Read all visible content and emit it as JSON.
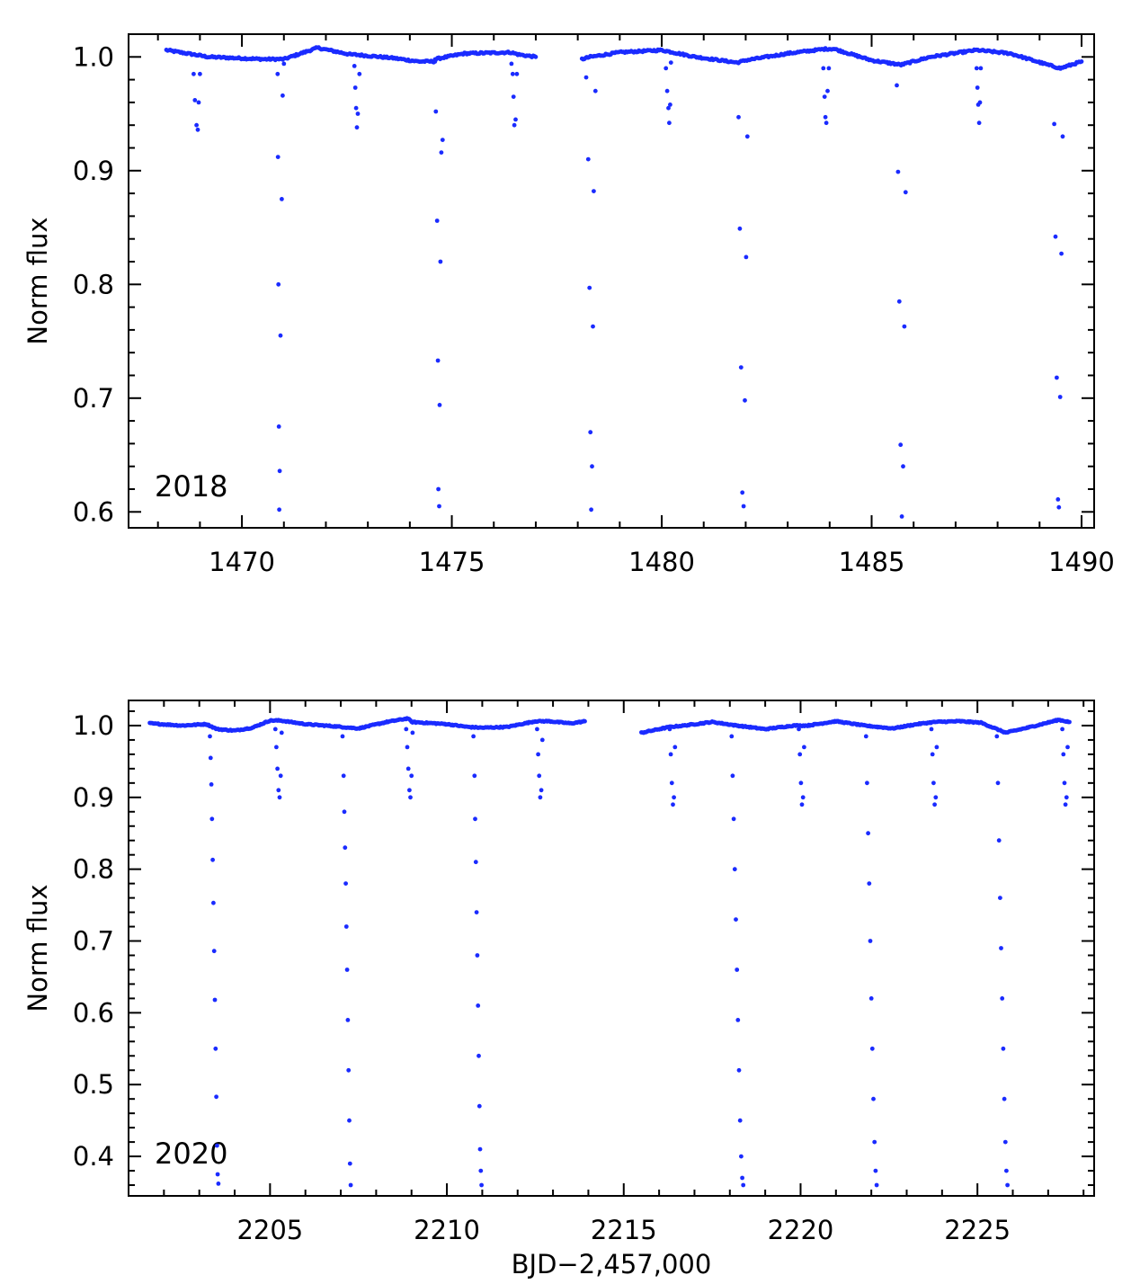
{
  "chart_data": [
    {
      "type": "scatter",
      "annotation": "2018",
      "ylabel": "Norm flux",
      "xlabel": "",
      "xlim": [
        1467.3,
        1490.3
      ],
      "ylim": [
        0.586,
        1.02
      ],
      "x_ticks": [
        1470,
        1475,
        1480,
        1485,
        1490
      ],
      "x_tick_labels": [
        "1470",
        "1475",
        "1480",
        "1485",
        "1490"
      ],
      "y_ticks": [
        0.6,
        0.7,
        0.8,
        0.9,
        1.0
      ],
      "y_tick_labels": [
        "0.6",
        "0.7",
        "0.8",
        "0.9",
        "1.0"
      ],
      "marker_color": "#1a2bff",
      "series": [
        {
          "continuum_segments": [
            {
              "x": [
                1468.2,
                1469.2,
                1470.5,
                1471.0,
                1471.8,
                1472.6,
                1472.7,
                1473.6,
                1474.2,
                1474.6
              ],
              "y": [
                1.006,
                1.0,
                0.998,
                0.998,
                1.008,
                1.002,
                1.002,
                0.999,
                0.996,
                0.996
              ]
            },
            {
              "x": [
                1474.6,
                1475.3,
                1476.4,
                1476.6,
                1477.0
              ],
              "y": [
                0.998,
                1.003,
                1.004,
                1.002,
                1.0
              ]
            },
            {
              "x": [
                1478.1,
                1478.3,
                1479.0,
                1480.0,
                1480.8,
                1481.8,
                1482.0,
                1483.0,
                1483.9,
                1484.1,
                1485.0,
                1485.7,
                1486.4,
                1487.5,
                1488.3,
                1489.2,
                1489.5,
                1490.0
              ],
              "y": [
                0.998,
                1.0,
                1.004,
                1.006,
                1.0,
                0.995,
                0.997,
                1.003,
                1.007,
                1.007,
                0.997,
                0.993,
                1.0,
                1.006,
                1.003,
                0.993,
                0.99,
                0.996
              ]
            }
          ],
          "eclipses": [
            {
              "x": [
                1468.85,
                1468.88,
                1468.92,
                1468.95,
                1468.97,
                1469.0
              ],
              "y": [
                0.985,
                0.962,
                0.94,
                0.936,
                0.96,
                0.985
              ]
            },
            {
              "x": [
                1470.85,
                1470.86,
                1470.87,
                1470.88,
                1470.89,
                1470.9,
                1470.92,
                1470.95,
                1470.97,
                1471.0
              ],
              "y": [
                0.985,
                0.912,
                0.8,
                0.675,
                0.602,
                0.636,
                0.755,
                0.875,
                0.966,
                0.994
              ]
            },
            {
              "x": [
                1472.68,
                1472.7,
                1472.72,
                1472.74,
                1472.76,
                1472.8
              ],
              "y": [
                0.992,
                0.973,
                0.955,
                0.938,
                0.95,
                0.985
              ]
            },
            {
              "x": [
                1474.62,
                1474.65,
                1474.67,
                1474.68,
                1474.7,
                1474.71,
                1474.73,
                1474.75,
                1474.78
              ],
              "y": [
                0.952,
                0.856,
                0.733,
                0.62,
                0.605,
                0.694,
                0.82,
                0.916,
                0.927
              ]
            },
            {
              "x": [
                1476.42,
                1476.45,
                1476.47,
                1476.49,
                1476.52,
                1476.55
              ],
              "y": [
                0.994,
                0.985,
                0.965,
                0.94,
                0.945,
                0.985
              ]
            },
            {
              "x": [
                1478.2,
                1478.25,
                1478.28,
                1478.3,
                1478.32,
                1478.34,
                1478.36,
                1478.38,
                1478.42
              ],
              "y": [
                0.982,
                0.91,
                0.797,
                0.67,
                0.602,
                0.64,
                0.763,
                0.882,
                0.97
              ]
            },
            {
              "x": [
                1480.1,
                1480.13,
                1480.16,
                1480.18,
                1480.2,
                1480.22
              ],
              "y": [
                0.99,
                0.97,
                0.955,
                0.942,
                0.958,
                0.995
              ]
            },
            {
              "x": [
                1481.83,
                1481.86,
                1481.89,
                1481.92,
                1481.95,
                1481.98,
                1482.01,
                1482.04
              ],
              "y": [
                0.947,
                0.849,
                0.727,
                0.617,
                0.605,
                0.698,
                0.824,
                0.93
              ]
            },
            {
              "x": [
                1483.85,
                1483.88,
                1483.9,
                1483.92,
                1483.95,
                1483.98
              ],
              "y": [
                0.99,
                0.965,
                0.947,
                0.942,
                0.97,
                0.99
              ]
            },
            {
              "x": [
                1485.6,
                1485.63,
                1485.66,
                1485.69,
                1485.72,
                1485.75,
                1485.78,
                1485.81
              ],
              "y": [
                0.975,
                0.899,
                0.785,
                0.659,
                0.596,
                0.64,
                0.763,
                0.881
              ]
            },
            {
              "x": [
                1487.5,
                1487.52,
                1487.54,
                1487.56,
                1487.58,
                1487.6
              ],
              "y": [
                0.99,
                0.973,
                0.958,
                0.942,
                0.96,
                0.99
              ]
            },
            {
              "x": [
                1489.35,
                1489.38,
                1489.41,
                1489.44,
                1489.46,
                1489.49,
                1489.52,
                1489.55
              ],
              "y": [
                0.941,
                0.842,
                0.718,
                0.611,
                0.604,
                0.701,
                0.827,
                0.93
              ]
            }
          ]
        }
      ]
    },
    {
      "type": "scatter",
      "annotation": "2020",
      "ylabel": "Norm flux",
      "xlabel": "BJD−2,457,000",
      "xlim": [
        2201.0,
        2228.3
      ],
      "ylim": [
        0.345,
        1.035
      ],
      "x_ticks": [
        2205,
        2210,
        2215,
        2220,
        2225
      ],
      "x_tick_labels": [
        "2205",
        "2210",
        "2215",
        "2220",
        "2225"
      ],
      "y_ticks": [
        0.4,
        0.5,
        0.6,
        0.7,
        0.8,
        0.9,
        1.0
      ],
      "y_tick_labels": [
        "0.4",
        "0.5",
        "0.6",
        "0.7",
        "0.8",
        "0.9",
        "1.0"
      ],
      "marker_color": "#1a2bff",
      "series": [
        {
          "continuum_segments": [
            {
              "x": [
                2201.6,
                2202.5,
                2203.2,
                2203.5,
                2204.0,
                2204.5,
                2205.0,
                2205.3,
                2206.0,
                2206.8,
                2207.5,
                2208.3,
                2208.9,
                2209.0,
                2210.0,
                2210.6,
                2211.0,
                2211.7,
                2212.5,
                2212.9,
                2213.5,
                2213.9
              ],
              "y": [
                1.003,
                1.0,
                1.002,
                0.995,
                0.993,
                0.997,
                1.007,
                1.007,
                1.002,
                0.999,
                0.996,
                1.005,
                1.01,
                1.005,
                1.002,
                0.998,
                0.997,
                0.998,
                1.006,
                1.006,
                1.003,
                1.006
              ]
            },
            {
              "x": [
                2215.5,
                2216.3,
                2216.7,
                2217.5,
                2218.2,
                2219.0,
                2219.8,
                2220.2,
                2221.0,
                2221.8,
                2222.6,
                2223.3,
                2223.8,
                2224.5,
                2225.1,
                2225.8,
                2226.5,
                2227.3,
                2227.6
              ],
              "y": [
                0.99,
                0.998,
                1.0,
                1.005,
                1.0,
                0.995,
                1.0,
                1.0,
                1.006,
                1.0,
                0.996,
                1.002,
                1.005,
                1.006,
                1.004,
                0.99,
                0.998,
                1.008,
                1.005
              ]
            }
          ],
          "eclipses": [
            {
              "x": [
                2203.3,
                2203.32,
                2203.34,
                2203.36,
                2203.38,
                2203.4,
                2203.42,
                2203.44,
                2203.46,
                2203.48,
                2203.5,
                2203.52,
                2203.54
              ],
              "y": [
                0.985,
                0.955,
                0.918,
                0.87,
                0.813,
                0.753,
                0.686,
                0.618,
                0.55,
                0.483,
                0.415,
                0.375,
                0.362
              ]
            },
            {
              "x": [
                2205.15,
                2205.18,
                2205.21,
                2205.24,
                2205.27,
                2205.3,
                2205.33
              ],
              "y": [
                0.995,
                0.97,
                0.94,
                0.91,
                0.9,
                0.93,
                0.99
              ]
            },
            {
              "x": [
                2207.05,
                2207.08,
                2207.1,
                2207.12,
                2207.14,
                2207.16,
                2207.18,
                2207.2,
                2207.22,
                2207.24,
                2207.26,
                2207.28
              ],
              "y": [
                0.985,
                0.93,
                0.88,
                0.83,
                0.78,
                0.72,
                0.66,
                0.59,
                0.52,
                0.45,
                0.39,
                0.36
              ]
            },
            {
              "x": [
                2208.85,
                2208.88,
                2208.91,
                2208.94,
                2208.97,
                2209.0,
                2209.03
              ],
              "y": [
                0.995,
                0.97,
                0.94,
                0.91,
                0.9,
                0.93,
                0.99
              ]
            },
            {
              "x": [
                2210.75,
                2210.78,
                2210.8,
                2210.82,
                2210.84,
                2210.86,
                2210.88,
                2210.9,
                2210.92,
                2210.94,
                2210.96,
                2210.98
              ],
              "y": [
                0.985,
                0.93,
                0.87,
                0.81,
                0.74,
                0.68,
                0.61,
                0.54,
                0.47,
                0.41,
                0.38,
                0.36
              ]
            },
            {
              "x": [
                2212.55,
                2212.58,
                2212.61,
                2212.64,
                2212.67,
                2212.7
              ],
              "y": [
                0.995,
                0.96,
                0.93,
                0.9,
                0.91,
                0.98
              ]
            },
            {
              "x": [
                2216.3,
                2216.33,
                2216.36,
                2216.39,
                2216.42,
                2216.45
              ],
              "y": [
                0.995,
                0.96,
                0.92,
                0.89,
                0.9,
                0.97
              ]
            },
            {
              "x": [
                2218.05,
                2218.08,
                2218.11,
                2218.14,
                2218.17,
                2218.2,
                2218.23,
                2218.26,
                2218.29,
                2218.32,
                2218.35,
                2218.38
              ],
              "y": [
                0.985,
                0.93,
                0.87,
                0.8,
                0.73,
                0.66,
                0.59,
                0.52,
                0.45,
                0.4,
                0.37,
                0.36
              ]
            },
            {
              "x": [
                2219.95,
                2219.98,
                2220.01,
                2220.04,
                2220.07,
                2220.1
              ],
              "y": [
                0.995,
                0.96,
                0.92,
                0.89,
                0.9,
                0.97
              ]
            },
            {
              "x": [
                2221.85,
                2221.88,
                2221.91,
                2221.94,
                2221.97,
                2222.0,
                2222.03,
                2222.06,
                2222.09,
                2222.12,
                2222.15
              ],
              "y": [
                0.985,
                0.92,
                0.85,
                0.78,
                0.7,
                0.62,
                0.55,
                0.48,
                0.42,
                0.38,
                0.36
              ]
            },
            {
              "x": [
                2223.7,
                2223.73,
                2223.76,
                2223.79,
                2223.82,
                2223.85
              ],
              "y": [
                0.995,
                0.96,
                0.92,
                0.89,
                0.9,
                0.97
              ]
            },
            {
              "x": [
                2225.55,
                2225.58,
                2225.61,
                2225.64,
                2225.67,
                2225.7,
                2225.73,
                2225.76,
                2225.79,
                2225.82,
                2225.85
              ],
              "y": [
                0.985,
                0.92,
                0.84,
                0.76,
                0.69,
                0.62,
                0.55,
                0.48,
                0.42,
                0.38,
                0.36
              ]
            },
            {
              "x": [
                2227.4,
                2227.43,
                2227.46,
                2227.49,
                2227.52,
                2227.55
              ],
              "y": [
                0.995,
                0.96,
                0.92,
                0.89,
                0.9,
                0.97
              ]
            }
          ]
        }
      ]
    }
  ]
}
